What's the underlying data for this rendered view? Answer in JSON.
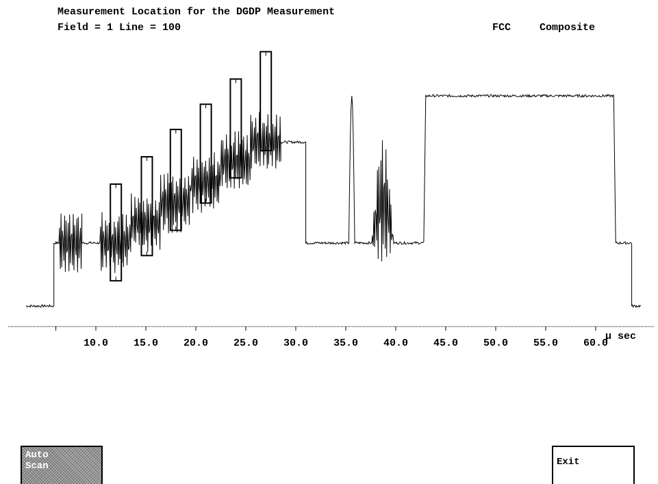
{
  "header": {
    "title": "Measurement Location for the DGDP Measurement",
    "field_line": "Field = 1 Line = 100",
    "standard": "FCC",
    "signal": "Composite"
  },
  "chart_data": {
    "type": "line",
    "title": "Measurement Location for the DGDP Measurement",
    "xlabel": "µ sec",
    "ylabel": "",
    "xlim": [
      3.0,
      64.5
    ],
    "ylim": [
      -0.1,
      1.0
    ],
    "x_ticks": [
      "10.0",
      "15.0",
      "20.0",
      "25.0",
      "30.0",
      "35.0",
      "40.0",
      "45.0",
      "50.0",
      "55.0",
      "60.0"
    ],
    "x_tick_values": [
      10,
      15,
      20,
      25,
      30,
      35,
      40,
      45,
      50,
      55,
      60
    ],
    "x_minor_tick": 6.0,
    "waveform_description": "Composite video line (FCC). Sync tip ~0, blanking ~0.3, staircase with subcarrier bursts rising to ~0.8, white bar ~1.0",
    "baseline": {
      "sync": 0.0,
      "blanking": 0.3
    },
    "segments": [
      {
        "x_start": 3.0,
        "x_end": 5.8,
        "level": 0.0,
        "kind": "flat"
      },
      {
        "x_start": 5.8,
        "x_end": 6.3,
        "level": 0.3,
        "kind": "flat"
      },
      {
        "x_start": 6.3,
        "x_end": 8.6,
        "level": 0.3,
        "amplitude": 0.14,
        "kind": "burst"
      },
      {
        "x_start": 8.6,
        "x_end": 10.4,
        "level": 0.3,
        "kind": "flat"
      },
      {
        "x_start": 10.4,
        "x_end": 28.5,
        "level_start": 0.3,
        "level_end": 0.78,
        "amplitude": 0.14,
        "kind": "modulated_staircase"
      },
      {
        "x_start": 28.5,
        "x_end": 31.0,
        "level": 0.78,
        "kind": "flat"
      },
      {
        "x_start": 31.0,
        "x_end": 35.3,
        "level": 0.3,
        "kind": "flat"
      },
      {
        "x_start": 35.3,
        "x_end": 35.9,
        "level": 1.0,
        "kind": "pulse"
      },
      {
        "x_start": 35.9,
        "x_end": 37.6,
        "level": 0.3,
        "kind": "flat"
      },
      {
        "x_start": 37.6,
        "x_end": 39.8,
        "level": 0.5,
        "amplitude": 0.3,
        "kind": "modulated_pulse"
      },
      {
        "x_start": 39.8,
        "x_end": 42.8,
        "level": 0.3,
        "kind": "flat"
      },
      {
        "x_start": 43.0,
        "x_end": 61.8,
        "level": 1.0,
        "kind": "flat"
      },
      {
        "x_start": 62.0,
        "x_end": 63.6,
        "level": 0.3,
        "kind": "flat"
      },
      {
        "x_start": 63.6,
        "x_end": 64.5,
        "level": 0.0,
        "kind": "flat"
      }
    ],
    "measurement_markers": [
      {
        "x": 12.0,
        "y_low": 0.12,
        "y_high": 0.58
      },
      {
        "x": 15.1,
        "y_low": 0.24,
        "y_high": 0.71
      },
      {
        "x": 18.0,
        "y_low": 0.36,
        "y_high": 0.84
      },
      {
        "x": 21.0,
        "y_low": 0.49,
        "y_high": 0.96
      },
      {
        "x": 24.0,
        "y_low": 0.61,
        "y_high": 1.08
      },
      {
        "x": 27.0,
        "y_low": 0.74,
        "y_high": 1.21
      }
    ]
  },
  "softkeys": {
    "auto_scan_line1": "Auto",
    "auto_scan_line2": "Scan",
    "exit": "Exit"
  }
}
